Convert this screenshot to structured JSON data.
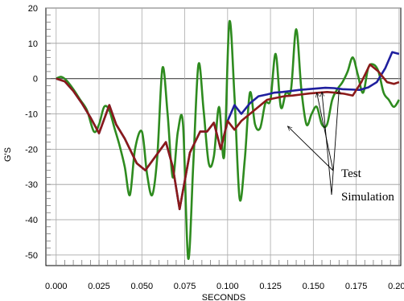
{
  "chart_data": {
    "type": "line",
    "xlabel": "SECONDS",
    "ylabel": "G'S",
    "xlim": [
      -0.006,
      0.201
    ],
    "ylim": [
      -53,
      20
    ],
    "xticks": [
      0.0,
      0.025,
      0.05,
      0.075,
      0.1,
      0.125,
      0.15,
      0.175,
      0.2
    ],
    "xtick_labels": [
      "0.000",
      "0.025",
      "0.050",
      "0.075",
      "0.100",
      "0.125",
      "0.150",
      "0.175",
      "0.200"
    ],
    "yticks": [
      20,
      10,
      0,
      -10,
      -20,
      -30,
      -40,
      -50
    ],
    "ytick_labels": [
      "20",
      "10",
      "0",
      "-10",
      "-20",
      "-30",
      "-40",
      "-50"
    ],
    "grid": true,
    "series": [
      {
        "name": "Test",
        "color": "#2e8b1f",
        "x": [
          0.0,
          0.003,
          0.006,
          0.01,
          0.014,
          0.018,
          0.022,
          0.025,
          0.028,
          0.031,
          0.034,
          0.037,
          0.04,
          0.043,
          0.046,
          0.05,
          0.053,
          0.056,
          0.059,
          0.062,
          0.065,
          0.068,
          0.071,
          0.074,
          0.077,
          0.08,
          0.083,
          0.086,
          0.089,
          0.092,
          0.095,
          0.098,
          0.101,
          0.104,
          0.107,
          0.11,
          0.113,
          0.116,
          0.119,
          0.122,
          0.125,
          0.128,
          0.131,
          0.134,
          0.137,
          0.14,
          0.143,
          0.146,
          0.149,
          0.152,
          0.155,
          0.158,
          0.161,
          0.164,
          0.167,
          0.17,
          0.173,
          0.176,
          0.179,
          0.182,
          0.185,
          0.188,
          0.191,
          0.194,
          0.197,
          0.2
        ],
        "y": [
          0.0,
          0.5,
          -0.5,
          -3,
          -6,
          -9,
          -15,
          -13,
          -8,
          -9,
          -14,
          -19,
          -25,
          -33,
          -20,
          -15,
          -27,
          -33,
          -22,
          3,
          -10,
          -28,
          -15,
          -13,
          -51,
          -24,
          4,
          -9,
          -24,
          -22,
          -8,
          -22,
          16,
          -5,
          -34,
          -23,
          -4,
          -13,
          -14,
          -7,
          -6,
          7,
          -8,
          -4,
          -3,
          14,
          -3,
          -13,
          -10,
          -8,
          -13,
          -13,
          -6,
          -3,
          -1,
          2,
          6,
          1,
          -4,
          3,
          4,
          2,
          -4,
          -6,
          -8,
          -6
        ],
        "mode": "smooth"
      },
      {
        "name": "Simulation",
        "color": "#1f1f9e",
        "x": [
          0.0,
          0.005,
          0.01,
          0.015,
          0.02,
          0.025,
          0.031,
          0.035,
          0.04,
          0.047,
          0.052,
          0.058,
          0.064,
          0.068,
          0.072,
          0.078,
          0.084,
          0.088,
          0.092,
          0.096,
          0.1,
          0.104,
          0.108,
          0.113,
          0.118,
          0.123,
          0.127,
          0.132,
          0.137,
          0.142,
          0.147,
          0.152,
          0.157,
          0.162,
          0.167,
          0.172,
          0.177,
          0.182,
          0.187,
          0.192,
          0.196,
          0.2
        ],
        "y": [
          0.0,
          -0.8,
          -3.5,
          -7,
          -11,
          -15.5,
          -7.5,
          -13,
          -17,
          -24,
          -26,
          -22,
          -18,
          -25,
          -37,
          -21,
          -15,
          -15,
          -12.5,
          -20,
          -12,
          -7.5,
          -10,
          -7,
          -5,
          -4.5,
          -4,
          -3.8,
          -3.5,
          -3.2,
          -3,
          -2.8,
          -2.6,
          -2.7,
          -3,
          -3.1,
          -3.2,
          -2.5,
          -1,
          3,
          7.5,
          7
        ],
        "mode": "linear"
      },
      {
        "name": "Simulation",
        "color": "#8b1a1a",
        "x": [
          0.0,
          0.005,
          0.01,
          0.015,
          0.02,
          0.025,
          0.031,
          0.035,
          0.04,
          0.047,
          0.052,
          0.058,
          0.064,
          0.068,
          0.072,
          0.078,
          0.084,
          0.088,
          0.092,
          0.096,
          0.1,
          0.104,
          0.108,
          0.113,
          0.118,
          0.123,
          0.128,
          0.133,
          0.138,
          0.143,
          0.148,
          0.153,
          0.158,
          0.163,
          0.168,
          0.173,
          0.178,
          0.183,
          0.188,
          0.193,
          0.197,
          0.2
        ],
        "y": [
          0.0,
          -0.8,
          -3.5,
          -7,
          -11,
          -15.5,
          -7.5,
          -13,
          -17,
          -24,
          -26,
          -22,
          -18,
          -25,
          -37,
          -21,
          -15,
          -15,
          -12.5,
          -20,
          -12,
          -14.5,
          -12,
          -10,
          -8,
          -6,
          -5.5,
          -5,
          -4.8,
          -4.5,
          -4.2,
          -4,
          -3.8,
          -4,
          -4.3,
          -4.8,
          -1,
          4,
          2,
          -1,
          -1.5,
          -1
        ],
        "mode": "linear"
      }
    ],
    "annotations": [
      {
        "text": "Test",
        "arrow_targets": [
          [
            0.135,
            -13.5
          ],
          [
            0.152,
            -4
          ]
        ]
      },
      {
        "text": "Simulation",
        "arrow_targets": [
          [
            0.155,
            -3.8
          ],
          [
            0.165,
            -3.2
          ]
        ]
      }
    ]
  }
}
